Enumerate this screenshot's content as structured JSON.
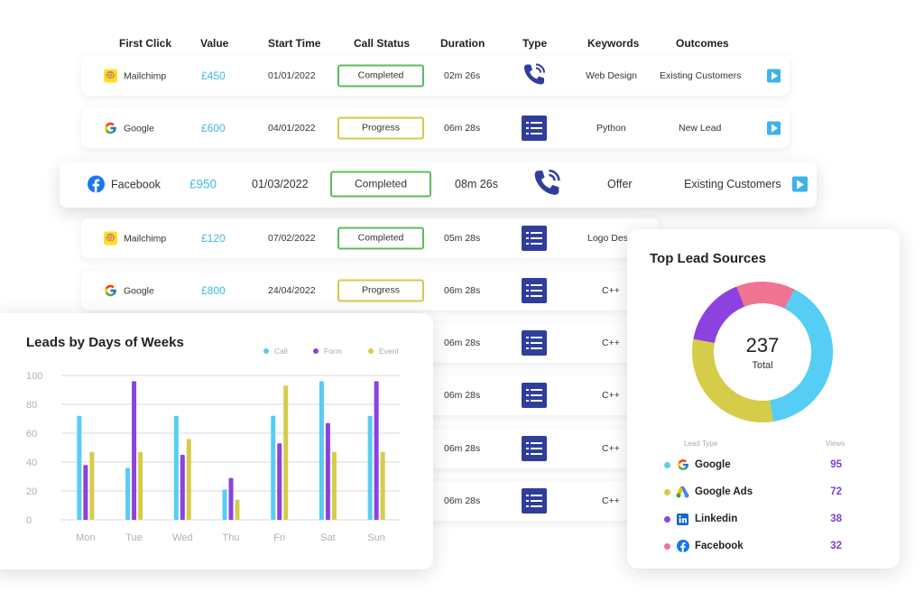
{
  "table": {
    "headers": {
      "first_click": "First Click",
      "value": "Value",
      "start_time": "Start Time",
      "call_status": "Call Status",
      "duration": "Duration",
      "type": "Type",
      "keywords": "Keywords",
      "outcomes": "Outcomes"
    },
    "rows": [
      {
        "source": "Mailchimp",
        "source_icon": "mailchimp-icon",
        "value": "£450",
        "start": "01/01/2022",
        "status": "Completed",
        "duration": "02m 26s",
        "type_icon": "phone-call-icon",
        "keyword": "Web Design",
        "outcome": "Existing Customers"
      },
      {
        "source": "Google",
        "source_icon": "google-icon",
        "value": "£600",
        "start": "04/01/2022",
        "status": "Progress",
        "duration": "06m 28s",
        "type_icon": "form-icon",
        "keyword": "Python",
        "outcome": "New Lead"
      },
      {
        "source": "Facebook",
        "source_icon": "facebook-icon",
        "value": "£950",
        "start": "01/03/2022",
        "status": "Completed",
        "duration": "08m 26s",
        "type_icon": "phone-call-icon",
        "keyword": "Offer",
        "outcome": "Existing Customers"
      },
      {
        "source": "Mailchimp",
        "source_icon": "mailchimp-icon",
        "value": "£120",
        "start": "07/02/2022",
        "status": "Completed",
        "duration": "05m 28s",
        "type_icon": "form-icon",
        "keyword": "Logo Des"
      },
      {
        "source": "Google",
        "source_icon": "google-icon",
        "value": "£800",
        "start": "24/04/2022",
        "status": "Progress",
        "duration": "06m 28s",
        "type_icon": "form-icon",
        "keyword": "C++"
      },
      {
        "duration": "06m 28s",
        "type_icon": "form-icon",
        "keyword": "C++"
      },
      {
        "duration": "06m 28s",
        "type_icon": "form-icon",
        "keyword": "C++"
      },
      {
        "duration": "06m 28s",
        "type_icon": "form-icon",
        "keyword": "C++"
      },
      {
        "duration": "06m 28s",
        "type_icon": "form-icon",
        "keyword": "C++"
      }
    ]
  },
  "bar_chart": {
    "title": "Leads by Days of Weeks",
    "legend": [
      "Call",
      "Form",
      "Event"
    ]
  },
  "donut": {
    "title": "Top Lead Sources",
    "total_value": "237",
    "total_label": "Total",
    "col_lead_type": "Lead Type",
    "col_views": "Views",
    "sources": [
      {
        "name": "Google",
        "views": "95",
        "color": "#56cdf5",
        "icon": "google-icon"
      },
      {
        "name": "Google Ads",
        "views": "72",
        "color": "#d5cc4a",
        "icon": "google-ads-icon"
      },
      {
        "name": "Linkedin",
        "views": "38",
        "color": "#8b42df",
        "icon": "linkedin-icon"
      },
      {
        "name": "Facebook",
        "views": "32",
        "color": "#f0738f",
        "icon": "facebook-icon"
      }
    ]
  },
  "colors": {
    "call": "#56cdf5",
    "form": "#8b42df",
    "event": "#d5cc4a",
    "accent_blue": "#3fb8e8",
    "type_box": "#2f3e9a"
  },
  "chart_data": [
    {
      "type": "bar",
      "title": "Leads by Days of Weeks",
      "categories": [
        "Mon",
        "Tue",
        "Wed",
        "Thu",
        "Fri",
        "Sat",
        "Sun"
      ],
      "series": [
        {
          "name": "Call",
          "values": [
            72,
            36,
            72,
            21,
            72,
            96,
            72
          ]
        },
        {
          "name": "Form",
          "values": [
            38,
            96,
            45,
            29,
            53,
            67,
            96
          ]
        },
        {
          "name": "Event",
          "values": [
            47,
            47,
            56,
            14,
            93,
            47,
            47
          ]
        }
      ],
      "ylim": [
        0,
        100
      ],
      "yticks": [
        0,
        20,
        40,
        60,
        80,
        100
      ],
      "grid": true,
      "legend": "top-right"
    },
    {
      "type": "pie",
      "title": "Top Lead Sources",
      "labels": [
        "Google",
        "Google Ads",
        "Linkedin",
        "Facebook"
      ],
      "values": [
        95,
        72,
        38,
        32
      ],
      "total": 237
    }
  ]
}
